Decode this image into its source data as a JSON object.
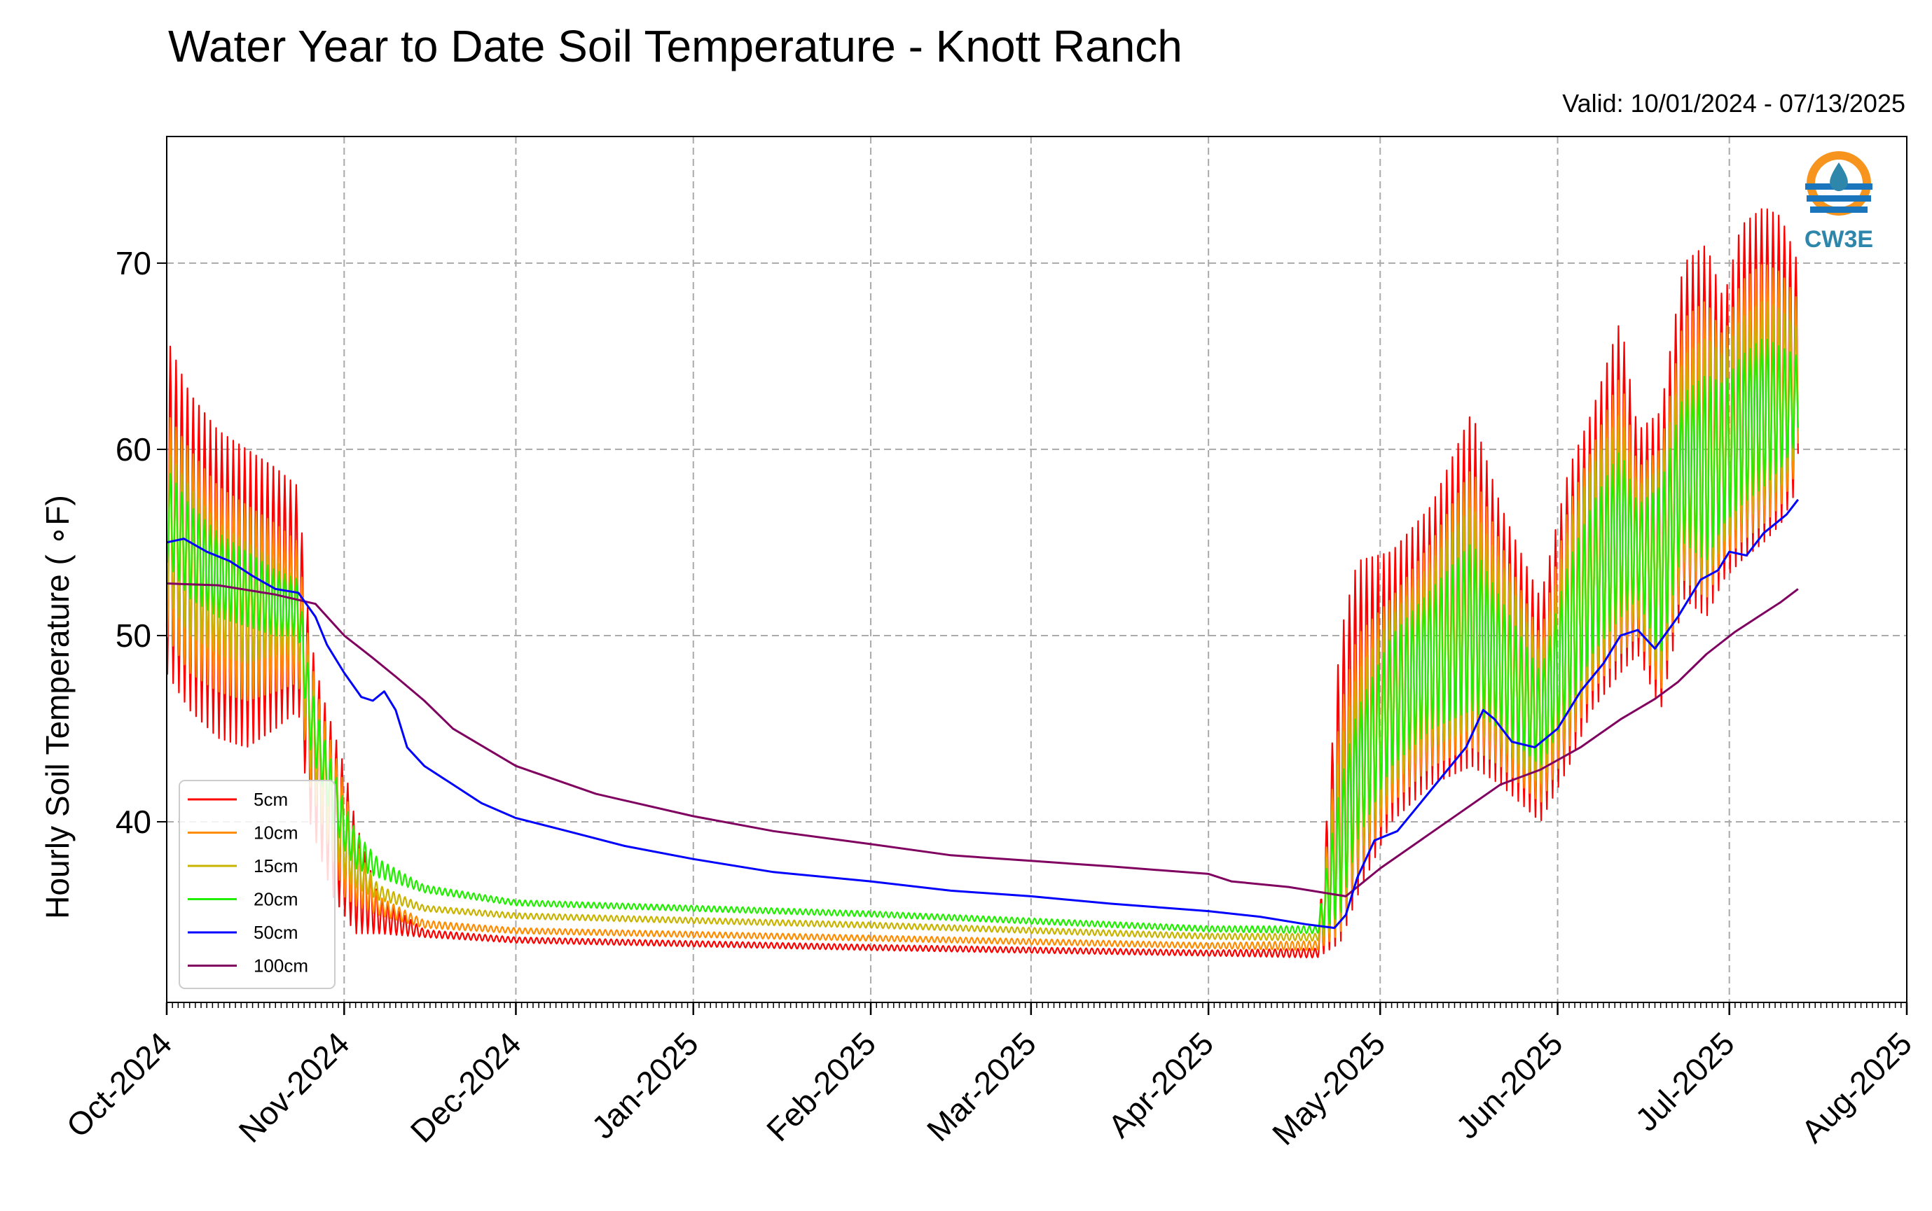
{
  "chart_data": {
    "type": "line",
    "title": "Water Year to Date Soil Temperature - Knott Ranch",
    "subtitle": "Valid: 10/01/2024 - 07/13/2025",
    "xlabel": "",
    "ylabel": "Hourly Soil Temperature ( ∘F)",
    "xlim": [
      "2024-10-01",
      "2025-08-01"
    ],
    "ylim": [
      30.3,
      76.8
    ],
    "yticks": [
      40,
      50,
      60,
      70
    ],
    "ytick_labels": [
      "40",
      "50",
      "60",
      "70"
    ],
    "xticks": [
      "2024-10-01",
      "2024-11-01",
      "2024-12-01",
      "2025-01-01",
      "2025-02-01",
      "2025-03-01",
      "2025-04-01",
      "2025-05-01",
      "2025-06-01",
      "2025-07-01",
      "2025-08-01"
    ],
    "xtick_labels": [
      "Oct-2024",
      "Nov-2024",
      "Dec-2024",
      "Jan-2025",
      "Feb-2025",
      "Mar-2025",
      "Apr-2025",
      "May-2025",
      "Jun-2025",
      "Jul-2025",
      "Aug-2025"
    ],
    "grid": true,
    "legend_position": "lower-left",
    "logo_text": "CW3E",
    "series": [
      {
        "name": "5cm",
        "color": "#ff0000",
        "envelope": [
          [
            "2024-10-01",
            48,
            66
          ],
          [
            "2024-10-05",
            46,
            63
          ],
          [
            "2024-10-10",
            44.5,
            61
          ],
          [
            "2024-10-15",
            44,
            60
          ],
          [
            "2024-10-20",
            45,
            59
          ],
          [
            "2024-10-24",
            46,
            58
          ],
          [
            "2024-10-26",
            40,
            50
          ],
          [
            "2024-10-28",
            38,
            47
          ],
          [
            "2024-10-30",
            36,
            45
          ],
          [
            "2024-11-01",
            35,
            43
          ],
          [
            "2024-11-03",
            34,
            40
          ],
          [
            "2024-11-07",
            34,
            36
          ],
          [
            "2024-11-15",
            33.8,
            34.2
          ],
          [
            "2024-12-01",
            33.5,
            33.8
          ],
          [
            "2025-02-01",
            33.1,
            33.4
          ],
          [
            "2025-04-01",
            32.8,
            33.1
          ],
          [
            "2025-04-20",
            32.7,
            33.2
          ],
          [
            "2025-04-24",
            33.5,
            50
          ],
          [
            "2025-04-27",
            36,
            54
          ],
          [
            "2025-05-03",
            40,
            54.5
          ],
          [
            "2025-05-10",
            42,
            57
          ],
          [
            "2025-05-17",
            43,
            62
          ],
          [
            "2025-05-22",
            42,
            57
          ],
          [
            "2025-05-29",
            40,
            52
          ],
          [
            "2025-06-03",
            43,
            59
          ],
          [
            "2025-06-07",
            46,
            62
          ],
          [
            "2025-06-12",
            48,
            67
          ],
          [
            "2025-06-15",
            49,
            61
          ],
          [
            "2025-06-19",
            46,
            62
          ],
          [
            "2025-06-23",
            52,
            70
          ],
          [
            "2025-06-27",
            51,
            71
          ],
          [
            "2025-06-30",
            53,
            68
          ],
          [
            "2025-07-03",
            54,
            72
          ],
          [
            "2025-07-07",
            55,
            73
          ],
          [
            "2025-07-10",
            56,
            72.5
          ],
          [
            "2025-07-13",
            58,
            70
          ]
        ]
      },
      {
        "name": "10cm",
        "color": "#ff8c00",
        "envelope": [
          [
            "2024-10-01",
            50,
            62
          ],
          [
            "2024-10-05",
            48,
            60
          ],
          [
            "2024-10-10",
            47,
            58
          ],
          [
            "2024-10-15",
            46.5,
            57
          ],
          [
            "2024-10-20",
            47,
            56
          ],
          [
            "2024-10-24",
            47.5,
            55
          ],
          [
            "2024-10-26",
            42,
            49
          ],
          [
            "2024-10-28",
            40,
            46
          ],
          [
            "2024-10-30",
            38,
            44
          ],
          [
            "2024-11-01",
            36,
            42
          ],
          [
            "2024-11-03",
            35.5,
            39
          ],
          [
            "2024-11-07",
            35,
            36
          ],
          [
            "2024-11-15",
            34.3,
            34.7
          ],
          [
            "2024-12-01",
            34.0,
            34.3
          ],
          [
            "2025-02-01",
            33.6,
            33.9
          ],
          [
            "2025-04-01",
            33.2,
            33.5
          ],
          [
            "2025-04-20",
            33.1,
            33.6
          ],
          [
            "2025-04-24",
            34,
            46
          ],
          [
            "2025-04-27",
            37,
            50
          ],
          [
            "2025-05-03",
            41,
            52
          ],
          [
            "2025-05-10",
            43,
            55
          ],
          [
            "2025-05-17",
            44,
            59
          ],
          [
            "2025-05-22",
            43,
            55
          ],
          [
            "2025-05-29",
            41,
            50
          ],
          [
            "2025-06-03",
            44,
            57
          ],
          [
            "2025-06-07",
            47,
            60
          ],
          [
            "2025-06-12",
            49,
            64
          ],
          [
            "2025-06-15",
            50,
            59
          ],
          [
            "2025-06-19",
            47,
            60
          ],
          [
            "2025-06-23",
            53,
            67
          ],
          [
            "2025-06-27",
            52,
            68
          ],
          [
            "2025-06-30",
            54,
            66
          ],
          [
            "2025-07-03",
            55,
            69
          ],
          [
            "2025-07-07",
            56,
            70
          ],
          [
            "2025-07-10",
            57,
            69.5
          ],
          [
            "2025-07-13",
            59,
            68
          ]
        ]
      },
      {
        "name": "15cm",
        "color": "#c8b400",
        "envelope": [
          [
            "2024-10-01",
            52,
            60
          ],
          [
            "2024-10-05",
            50,
            58
          ],
          [
            "2024-10-10",
            49,
            56
          ],
          [
            "2024-10-15",
            48.5,
            55
          ],
          [
            "2024-10-20",
            49,
            54
          ],
          [
            "2024-10-24",
            49,
            53
          ],
          [
            "2024-10-26",
            43,
            48
          ],
          [
            "2024-10-28",
            41,
            45
          ],
          [
            "2024-10-30",
            39,
            43
          ],
          [
            "2024-11-01",
            37,
            41
          ],
          [
            "2024-11-03",
            36.5,
            38.5
          ],
          [
            "2024-11-07",
            35.8,
            36.6
          ],
          [
            "2024-11-15",
            35.2,
            35.5
          ],
          [
            "2024-12-01",
            34.8,
            35.1
          ],
          [
            "2025-02-01",
            34.3,
            34.6
          ],
          [
            "2025-04-01",
            33.7,
            34.0
          ],
          [
            "2025-04-20",
            33.6,
            34.0
          ],
          [
            "2025-04-24",
            34.5,
            44
          ],
          [
            "2025-04-27",
            38,
            48
          ],
          [
            "2025-05-03",
            42,
            51
          ],
          [
            "2025-05-10",
            44,
            54
          ],
          [
            "2025-05-17",
            45,
            57
          ],
          [
            "2025-05-22",
            44,
            54
          ],
          [
            "2025-05-29",
            42,
            49
          ],
          [
            "2025-06-03",
            45,
            56
          ],
          [
            "2025-06-07",
            48,
            59
          ],
          [
            "2025-06-12",
            50,
            62
          ],
          [
            "2025-06-15",
            51,
            58
          ],
          [
            "2025-06-19",
            48,
            59
          ],
          [
            "2025-06-23",
            54,
            65
          ],
          [
            "2025-06-27",
            53,
            66
          ],
          [
            "2025-06-30",
            55,
            65
          ],
          [
            "2025-07-03",
            56,
            67
          ],
          [
            "2025-07-07",
            57,
            68
          ],
          [
            "2025-07-10",
            58,
            67.5
          ],
          [
            "2025-07-13",
            60,
            66.5
          ]
        ]
      },
      {
        "name": "20cm",
        "color": "#22ee00",
        "envelope": [
          [
            "2024-10-01",
            54,
            59
          ],
          [
            "2024-10-05",
            52,
            57
          ],
          [
            "2024-10-10",
            51,
            55.5
          ],
          [
            "2024-10-15",
            50.5,
            54.5
          ],
          [
            "2024-10-20",
            50,
            53.5
          ],
          [
            "2024-10-24",
            50,
            53
          ],
          [
            "2024-10-26",
            44,
            47.5
          ],
          [
            "2024-10-28",
            42,
            45
          ],
          [
            "2024-10-30",
            40,
            43
          ],
          [
            "2024-11-01",
            38.5,
            41
          ],
          [
            "2024-11-03",
            37.5,
            39.5
          ],
          [
            "2024-11-07",
            37,
            38
          ],
          [
            "2024-11-15",
            36.2,
            36.6
          ],
          [
            "2024-12-01",
            35.5,
            35.8
          ],
          [
            "2025-02-01",
            34.9,
            35.2
          ],
          [
            "2025-04-01",
            34.1,
            34.4
          ],
          [
            "2025-04-20",
            34.0,
            34.4
          ],
          [
            "2025-04-24",
            35,
            42
          ],
          [
            "2025-04-27",
            39,
            46
          ],
          [
            "2025-05-03",
            43,
            50
          ],
          [
            "2025-05-10",
            45,
            52.5
          ],
          [
            "2025-05-17",
            46,
            55
          ],
          [
            "2025-05-22",
            45,
            52
          ],
          [
            "2025-05-29",
            43,
            48
          ],
          [
            "2025-06-03",
            46,
            54
          ],
          [
            "2025-06-07",
            49,
            57
          ],
          [
            "2025-06-12",
            51,
            60
          ],
          [
            "2025-06-15",
            52,
            57
          ],
          [
            "2025-06-19",
            49,
            58
          ],
          [
            "2025-06-23",
            55,
            63
          ],
          [
            "2025-06-27",
            54,
            64
          ],
          [
            "2025-06-30",
            56,
            63.5
          ],
          [
            "2025-07-03",
            57,
            65
          ],
          [
            "2025-07-07",
            58,
            66
          ],
          [
            "2025-07-10",
            59,
            65.5
          ],
          [
            "2025-07-13",
            60.5,
            65
          ]
        ]
      },
      {
        "name": "50cm",
        "color": "#0000ff",
        "points": [
          [
            "2024-10-01",
            55
          ],
          [
            "2024-10-04",
            55.2
          ],
          [
            "2024-10-08",
            54.5
          ],
          [
            "2024-10-12",
            54
          ],
          [
            "2024-10-16",
            53.2
          ],
          [
            "2024-10-20",
            52.5
          ],
          [
            "2024-10-24",
            52.3
          ],
          [
            "2024-10-27",
            51
          ],
          [
            "2024-10-29",
            49.5
          ],
          [
            "2024-11-01",
            48
          ],
          [
            "2024-11-04",
            46.7
          ],
          [
            "2024-11-06",
            46.5
          ],
          [
            "2024-11-08",
            47
          ],
          [
            "2024-11-10",
            46
          ],
          [
            "2024-11-12",
            44
          ],
          [
            "2024-11-15",
            43
          ],
          [
            "2024-11-20",
            42
          ],
          [
            "2024-11-25",
            41
          ],
          [
            "2024-12-01",
            40.2
          ],
          [
            "2024-12-10",
            39.5
          ],
          [
            "2024-12-20",
            38.7
          ],
          [
            "2025-01-01",
            38.0
          ],
          [
            "2025-01-15",
            37.3
          ],
          [
            "2025-02-01",
            36.8
          ],
          [
            "2025-02-15",
            36.3
          ],
          [
            "2025-03-01",
            36.0
          ],
          [
            "2025-03-15",
            35.6
          ],
          [
            "2025-04-01",
            35.2
          ],
          [
            "2025-04-10",
            34.9
          ],
          [
            "2025-04-18",
            34.5
          ],
          [
            "2025-04-23",
            34.3
          ],
          [
            "2025-04-25",
            35
          ],
          [
            "2025-04-27",
            37
          ],
          [
            "2025-04-30",
            39
          ],
          [
            "2025-05-04",
            39.5
          ],
          [
            "2025-05-08",
            41
          ],
          [
            "2025-05-12",
            42.5
          ],
          [
            "2025-05-16",
            44
          ],
          [
            "2025-05-19",
            46
          ],
          [
            "2025-05-21",
            45.5
          ],
          [
            "2025-05-24",
            44.3
          ],
          [
            "2025-05-28",
            44
          ],
          [
            "2025-06-01",
            45
          ],
          [
            "2025-06-05",
            47
          ],
          [
            "2025-06-09",
            48.5
          ],
          [
            "2025-06-12",
            50
          ],
          [
            "2025-06-15",
            50.3
          ],
          [
            "2025-06-18",
            49.3
          ],
          [
            "2025-06-22",
            51
          ],
          [
            "2025-06-26",
            53
          ],
          [
            "2025-06-29",
            53.5
          ],
          [
            "2025-07-01",
            54.5
          ],
          [
            "2025-07-04",
            54.3
          ],
          [
            "2025-07-07",
            55.5
          ],
          [
            "2025-07-09",
            56
          ],
          [
            "2025-07-11",
            56.5
          ],
          [
            "2025-07-13",
            57.3
          ]
        ]
      },
      {
        "name": "100cm",
        "color": "#800060",
        "points": [
          [
            "2024-10-01",
            52.8
          ],
          [
            "2024-10-10",
            52.7
          ],
          [
            "2024-10-20",
            52.2
          ],
          [
            "2024-10-27",
            51.7
          ],
          [
            "2024-11-01",
            50
          ],
          [
            "2024-11-06",
            48.8
          ],
          [
            "2024-11-10",
            47.8
          ],
          [
            "2024-11-15",
            46.5
          ],
          [
            "2024-11-20",
            45
          ],
          [
            "2024-12-01",
            43
          ],
          [
            "2024-12-15",
            41.5
          ],
          [
            "2025-01-01",
            40.3
          ],
          [
            "2025-01-15",
            39.5
          ],
          [
            "2025-02-01",
            38.8
          ],
          [
            "2025-02-15",
            38.2
          ],
          [
            "2025-03-01",
            37.9
          ],
          [
            "2025-03-15",
            37.6
          ],
          [
            "2025-04-01",
            37.2
          ],
          [
            "2025-04-05",
            36.8
          ],
          [
            "2025-04-15",
            36.5
          ],
          [
            "2025-04-25",
            36
          ],
          [
            "2025-05-01",
            37.5
          ],
          [
            "2025-05-08",
            39
          ],
          [
            "2025-05-15",
            40.5
          ],
          [
            "2025-05-22",
            42
          ],
          [
            "2025-05-29",
            42.8
          ],
          [
            "2025-06-05",
            44
          ],
          [
            "2025-06-12",
            45.5
          ],
          [
            "2025-06-18",
            46.6
          ],
          [
            "2025-06-22",
            47.5
          ],
          [
            "2025-06-27",
            49
          ],
          [
            "2025-07-02",
            50.2
          ],
          [
            "2025-07-06",
            51
          ],
          [
            "2025-07-10",
            51.8
          ],
          [
            "2025-07-13",
            52.5
          ]
        ]
      }
    ]
  }
}
